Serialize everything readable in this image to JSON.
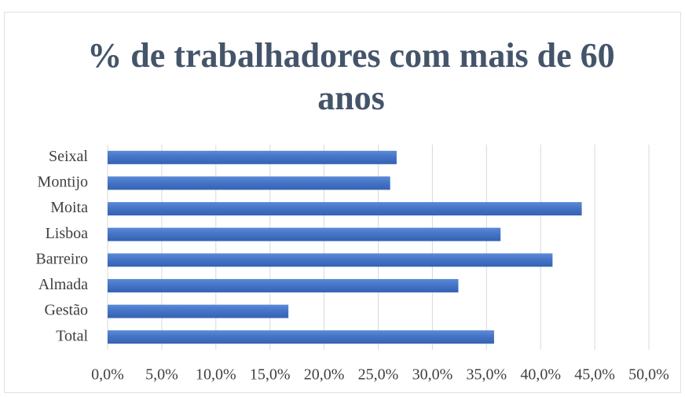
{
  "chart_data": {
    "type": "bar",
    "orientation": "horizontal",
    "title": "% de trabalhadores com mais de 60 anos",
    "categories": [
      "Seixal",
      "Montijo",
      "Moita",
      "Lisboa",
      "Barreiro",
      "Almada",
      "Gestão",
      "Total"
    ],
    "values": [
      26.7,
      26.1,
      43.8,
      36.3,
      41.1,
      32.4,
      16.7,
      35.7
    ],
    "color": "#4472c4",
    "xlim": [
      0,
      50
    ],
    "xticks": [
      {
        "value": 0,
        "label": "0,0%"
      },
      {
        "value": 5,
        "label": "5,0%"
      },
      {
        "value": 10,
        "label": "10,0%"
      },
      {
        "value": 15,
        "label": "15,0%"
      },
      {
        "value": 20,
        "label": "20,0%"
      },
      {
        "value": 25,
        "label": "25,0%"
      },
      {
        "value": 30,
        "label": "30,0%"
      },
      {
        "value": 35,
        "label": "35,0%"
      },
      {
        "value": 40,
        "label": "40,0%"
      },
      {
        "value": 45,
        "label": "45,0%"
      },
      {
        "value": 50,
        "label": "50,0%"
      }
    ],
    "grid": true
  }
}
